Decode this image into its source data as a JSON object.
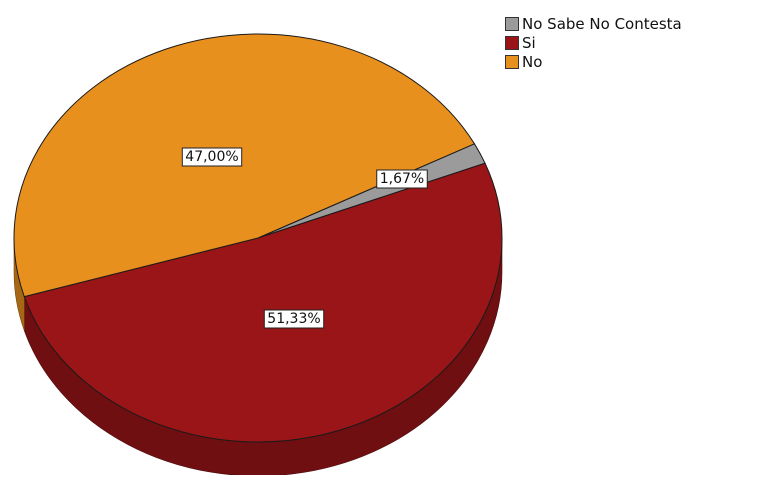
{
  "colors": {
    "no_sabe_no_contesta": "#9b9b9b",
    "si": "#9a1517",
    "no": "#e8901e"
  },
  "chart_data": {
    "type": "pie",
    "style": "3d",
    "legend_position": "top-right",
    "categories": [
      "No Sabe No Contesta",
      "Si",
      "No"
    ],
    "values": [
      1.67,
      51.33,
      47.0
    ],
    "data_labels": [
      "1,67%",
      "51,33%",
      "47,00%"
    ],
    "legend": [
      "No Sabe No Contesta",
      "Si",
      "No"
    ]
  }
}
